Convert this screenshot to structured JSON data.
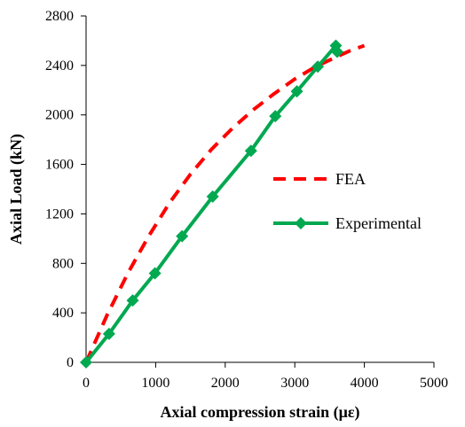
{
  "chart_data": {
    "type": "line",
    "title": "",
    "xlabel": "Axial compression strain (με)",
    "ylabel": "Axial Load (kN)",
    "xlim": [
      0,
      5000
    ],
    "ylim": [
      0,
      2800
    ],
    "xticks": [
      0,
      1000,
      2000,
      3000,
      4000,
      5000
    ],
    "yticks": [
      0,
      400,
      800,
      1200,
      1600,
      2000,
      2400,
      2800
    ],
    "x_tick_labels": [
      "0",
      "1000",
      "2000",
      "3000",
      "4000",
      "5000"
    ],
    "y_tick_labels": [
      "0",
      "400",
      "800",
      "1200",
      "1600",
      "2000",
      "2400",
      "2800"
    ],
    "grid": false,
    "legend_position": "right-middle",
    "series": [
      {
        "name": "FEA",
        "style": "dashed",
        "color": "#ff0000",
        "x": [
          0,
          300,
          600,
          900,
          1200,
          1500,
          1800,
          2100,
          2400,
          2700,
          3000,
          3300,
          3600,
          3800,
          4000
        ],
        "y": [
          0,
          380,
          720,
          1020,
          1290,
          1520,
          1720,
          1890,
          2040,
          2170,
          2290,
          2390,
          2470,
          2520,
          2560
        ]
      },
      {
        "name": "Experimental",
        "style": "solid-diamond",
        "color": "#00a850",
        "x": [
          0,
          330,
          670,
          990,
          1380,
          1820,
          2370,
          2720,
          3030,
          3330,
          3590,
          3610
        ],
        "y": [
          0,
          230,
          500,
          720,
          1020,
          1340,
          1710,
          1990,
          2190,
          2390,
          2560,
          2510
        ]
      }
    ]
  }
}
